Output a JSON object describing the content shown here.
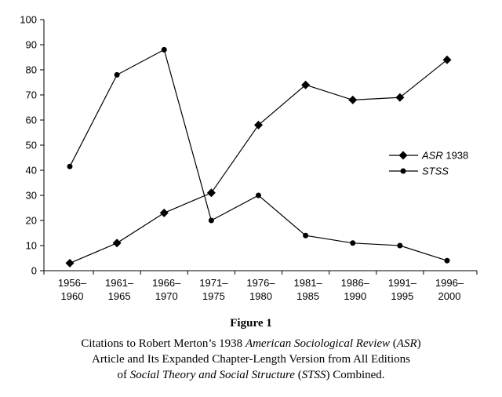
{
  "chart_data": {
    "type": "line",
    "categories": [
      "1956–\n1960",
      "1961–\n1965",
      "1966–\n1970",
      "1971–\n1975",
      "1976–\n1980",
      "1981–\n1985",
      "1986–\n1990",
      "1991–\n1995",
      "1996–\n2000"
    ],
    "series": [
      {
        "name": "ASR 1938",
        "name_italic": "ASR",
        "name_roman": " 1938",
        "marker": "diamond",
        "values": [
          3,
          11,
          23,
          31,
          58,
          74,
          68,
          69,
          84
        ]
      },
      {
        "name": "STSS",
        "name_italic": "STSS",
        "name_roman": "",
        "marker": "circle",
        "values": [
          41.5,
          78,
          88,
          20,
          30,
          14,
          11,
          10,
          4
        ]
      }
    ],
    "ylim": [
      0,
      100
    ],
    "yticks": [
      0,
      10,
      20,
      30,
      40,
      50,
      60,
      70,
      80,
      90,
      100
    ],
    "grid": false,
    "legend_position": "right",
    "color": "#000000"
  },
  "figure_title": "Figure 1",
  "caption": {
    "line1_a": "Citations to Robert Merton’s 1938 ",
    "line1_b": "American Sociological Review",
    "line1_c": " (",
    "line1_d": "ASR",
    "line1_e": ")",
    "line2": "Article and Its Expanded Chapter-Length Version from All Editions",
    "line3_a": "of ",
    "line3_b": "Social Theory and Social Structure",
    "line3_c": " (",
    "line3_d": "STSS",
    "line3_e": ") Combined."
  }
}
